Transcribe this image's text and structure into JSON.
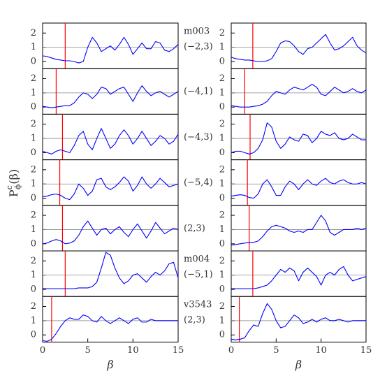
{
  "ylabel": {
    "base": "P",
    "sup": "c",
    "sub": "ϕ",
    "arg": "(β)"
  },
  "chart_data": [
    {
      "type": "line",
      "annotations": [
        "m003",
        "(−2,3)"
      ],
      "xlim": [
        0,
        15
      ],
      "ylim": [
        -0.5,
        2.7
      ],
      "yticks": [
        0,
        1,
        2
      ],
      "hline": 1,
      "hline_color": "#888888",
      "vline": 2.5,
      "vline_color": "#ff0000",
      "x": [
        0,
        0.5,
        1,
        1.5,
        2,
        2.5,
        3,
        3.5,
        4,
        4.5,
        5,
        5.5,
        6,
        6.5,
        7,
        7.5,
        8,
        8.5,
        9,
        9.5,
        10,
        10.5,
        11,
        11.5,
        12,
        12.5,
        13,
        13.5,
        14,
        14.5,
        15
      ],
      "series": [
        {
          "color": "#0000ff",
          "values": [
            0.4,
            0.35,
            0.25,
            0.15,
            0.1,
            0.05,
            0.05,
            0,
            -0.1,
            0,
            1.0,
            1.7,
            1.3,
            0.7,
            0.9,
            1.1,
            0.8,
            1.2,
            1.7,
            1.2,
            0.5,
            0.9,
            1.3,
            0.9,
            0.9,
            1.4,
            1.3,
            0.8,
            0.7,
            0.9,
            1.2
          ]
        }
      ]
    },
    {
      "type": "line",
      "annotations": [
        "(−4,1)"
      ],
      "xlim": [
        0,
        15
      ],
      "ylim": [
        -0.5,
        2.7
      ],
      "yticks": [
        0,
        1,
        2
      ],
      "hline": 1,
      "hline_color": "#888888",
      "vline": 1.5,
      "vline_color": "#ff0000",
      "x": [
        0,
        0.5,
        1,
        1.5,
        2,
        2.5,
        3,
        3.5,
        4,
        4.5,
        5,
        5.5,
        6,
        6.5,
        7,
        7.5,
        8,
        8.5,
        9,
        9.5,
        10,
        10.5,
        11,
        11.5,
        12,
        12.5,
        13,
        13.5,
        14,
        14.5,
        15
      ],
      "series": [
        {
          "color": "#0000ff",
          "values": [
            0.05,
            0,
            -0.05,
            0,
            0.05,
            0.1,
            0.1,
            0.3,
            0.7,
            1.0,
            0.9,
            0.6,
            0.9,
            1.4,
            1.3,
            0.9,
            1.1,
            1.3,
            1.4,
            0.9,
            0.4,
            1.0,
            1.5,
            1.1,
            0.8,
            1.0,
            1.1,
            0.9,
            0.7,
            0.9,
            1.1
          ]
        }
      ]
    },
    {
      "type": "line",
      "annotations": [
        "(−4,3)"
      ],
      "xlim": [
        0,
        15
      ],
      "ylim": [
        -0.5,
        2.7
      ],
      "yticks": [
        0,
        1,
        2
      ],
      "hline": 1,
      "hline_color": "#888888",
      "vline": 2.2,
      "vline_color": "#ff0000",
      "x": [
        0,
        0.5,
        1,
        1.5,
        2,
        2.5,
        3,
        3.5,
        4,
        4.5,
        5,
        5.5,
        6,
        6.5,
        7,
        7.5,
        8,
        8.5,
        9,
        9.5,
        10,
        10.5,
        11,
        11.5,
        12,
        12.5,
        13,
        13.5,
        14,
        14.5,
        15
      ],
      "series": [
        {
          "color": "#0000ff",
          "values": [
            0.1,
            0,
            -0.1,
            0.1,
            0.2,
            0.1,
            0,
            0.5,
            1.2,
            1.5,
            0.6,
            0.2,
            1.0,
            1.7,
            1.0,
            0.3,
            0.6,
            1.2,
            1.6,
            1.2,
            0.6,
            1.0,
            1.5,
            1.0,
            0.5,
            0.8,
            1.2,
            1.0,
            0.6,
            0.8,
            1.3
          ]
        }
      ]
    },
    {
      "type": "line",
      "annotations": [
        "(−5,4)"
      ],
      "xlim": [
        0,
        15
      ],
      "ylim": [
        -0.5,
        2.7
      ],
      "yticks": [
        0,
        1,
        2
      ],
      "hline": 1,
      "hline_color": "#888888",
      "vline": 1.9,
      "vline_color": "#ff0000",
      "x": [
        0,
        0.5,
        1,
        1.5,
        2,
        2.5,
        3,
        3.5,
        4,
        4.5,
        5,
        5.5,
        6,
        6.5,
        7,
        7.5,
        8,
        8.5,
        9,
        9.5,
        10,
        10.5,
        11,
        11.5,
        12,
        12.5,
        13,
        13.5,
        14,
        14.5,
        15
      ],
      "series": [
        {
          "color": "#0000ff",
          "values": [
            0.1,
            0.15,
            0.25,
            0.3,
            0.2,
            0,
            -0.1,
            0.3,
            1.0,
            0.7,
            0.2,
            0.5,
            1.3,
            1.4,
            0.8,
            0.6,
            0.8,
            1.1,
            1.5,
            1.2,
            0.5,
            0.9,
            1.5,
            1.0,
            0.7,
            1.0,
            1.4,
            1.1,
            0.8,
            0.9,
            1.0
          ]
        }
      ]
    },
    {
      "type": "line",
      "annotations": [
        "(2,3)"
      ],
      "xlim": [
        0,
        15
      ],
      "ylim": [
        -0.5,
        2.7
      ],
      "yticks": [
        0,
        1,
        2
      ],
      "hline": 1,
      "hline_color": "#888888",
      "vline": 2.2,
      "vline_color": "#ff0000",
      "x": [
        0,
        0.5,
        1,
        1.5,
        2,
        2.5,
        3,
        3.5,
        4,
        4.5,
        5,
        5.5,
        6,
        6.5,
        7,
        7.5,
        8,
        8.5,
        9,
        9.5,
        10,
        10.5,
        11,
        11.5,
        12,
        12.5,
        13,
        13.5,
        14,
        14.5,
        15
      ],
      "series": [
        {
          "color": "#0000ff",
          "values": [
            0,
            0.05,
            0.2,
            0.3,
            0.2,
            0,
            0.05,
            0.2,
            0.6,
            1.2,
            1.6,
            1.1,
            0.6,
            1.0,
            1.1,
            0.7,
            1.0,
            1.2,
            0.8,
            0.5,
            1.0,
            1.4,
            0.9,
            0.4,
            0.9,
            1.5,
            1.1,
            0.7,
            0.9,
            1.1,
            1.0
          ]
        }
      ]
    },
    {
      "type": "line",
      "annotations": [
        "m004",
        "(−5,1)"
      ],
      "xlim": [
        0,
        15
      ],
      "ylim": [
        -0.5,
        2.7
      ],
      "yticks": [
        0,
        1,
        2
      ],
      "hline": 1,
      "hline_color": "#888888",
      "vline": 2.5,
      "vline_color": "#ff0000",
      "x": [
        0,
        0.5,
        1,
        1.5,
        2,
        2.5,
        3,
        3.5,
        4,
        4.5,
        5,
        5.5,
        6,
        6.5,
        7,
        7.5,
        8,
        8.5,
        9,
        9.5,
        10,
        10.5,
        11,
        11.5,
        12,
        12.5,
        13,
        13.5,
        14,
        14.5,
        15
      ],
      "series": [
        {
          "color": "#0000ff",
          "values": [
            0.05,
            0.05,
            0.05,
            0.05,
            0.05,
            0.05,
            0.05,
            0.05,
            0.1,
            0.1,
            0.1,
            0.2,
            0.5,
            1.5,
            2.6,
            2.4,
            1.5,
            0.8,
            0.4,
            0.6,
            1.0,
            1.1,
            0.8,
            0.5,
            0.9,
            1.2,
            1.0,
            1.3,
            1.8,
            1.9,
            0.8
          ]
        }
      ]
    },
    {
      "type": "line",
      "annotations": [
        "v3543",
        "(2,3)"
      ],
      "xlim": [
        0,
        15
      ],
      "ylim": [
        -0.5,
        2.7
      ],
      "yticks": [
        0,
        1,
        2
      ],
      "xticks": [
        0,
        5,
        10,
        15
      ],
      "xlabel": "β",
      "hline": 1,
      "hline_color": "#888888",
      "vline": 1.0,
      "vline_color": "#ff0000",
      "x": [
        0,
        0.5,
        1,
        1.5,
        2,
        2.5,
        3,
        3.5,
        4,
        4.5,
        5,
        5.5,
        6,
        6.5,
        7,
        7.5,
        8,
        8.5,
        9,
        9.5,
        10,
        10.5,
        11,
        11.5,
        12,
        12.5,
        13,
        13.5,
        14,
        14.5,
        15
      ],
      "series": [
        {
          "color": "#0000ff",
          "values": [
            -0.4,
            -0.45,
            -0.3,
            0.1,
            0.6,
            1.0,
            1.2,
            1.1,
            1.1,
            1.4,
            1.3,
            1.0,
            0.9,
            1.3,
            1.0,
            0.8,
            1.0,
            1.2,
            1.0,
            0.8,
            1.1,
            1.2,
            0.9,
            0.9,
            1.1,
            1.0,
            1.0,
            1.0,
            1.0,
            1.0,
            1.0
          ]
        }
      ]
    },
    {
      "type": "line",
      "xlim": [
        0,
        15
      ],
      "ylim": [
        -0.5,
        2.7
      ],
      "yticks": [
        0,
        1,
        2
      ],
      "hline": 1,
      "hline_color": "#888888",
      "vline": 2.4,
      "vline_color": "#ff0000",
      "x": [
        0,
        0.5,
        1,
        1.5,
        2,
        2.5,
        3,
        3.5,
        4,
        4.5,
        5,
        5.5,
        6,
        6.5,
        7,
        7.5,
        8,
        8.5,
        9,
        9.5,
        10,
        10.5,
        11,
        11.5,
        12,
        12.5,
        13,
        13.5,
        14,
        14.5,
        15
      ],
      "series": [
        {
          "color": "#0000ff",
          "values": [
            0.3,
            0.2,
            0.15,
            0.1,
            0.1,
            0.05,
            0,
            0,
            0.05,
            0.2,
            0.7,
            1.3,
            1.45,
            1.4,
            1.1,
            0.7,
            0.5,
            0.9,
            1.0,
            1.3,
            1.6,
            1.9,
            1.3,
            0.8,
            0.9,
            1.1,
            1.4,
            1.7,
            1.1,
            0.8,
            0.6
          ]
        }
      ]
    },
    {
      "type": "line",
      "xlim": [
        0,
        15
      ],
      "ylim": [
        -0.5,
        2.7
      ],
      "yticks": [
        0,
        1,
        2
      ],
      "hline": 1,
      "hline_color": "#888888",
      "vline": 1.5,
      "vline_color": "#ff0000",
      "x": [
        0,
        0.5,
        1,
        1.5,
        2,
        2.5,
        3,
        3.5,
        4,
        4.5,
        5,
        5.5,
        6,
        6.5,
        7,
        7.5,
        8,
        8.5,
        9,
        9.5,
        10,
        10.5,
        11,
        11.5,
        12,
        12.5,
        13,
        13.5,
        14,
        14.5,
        15
      ],
      "series": [
        {
          "color": "#0000ff",
          "values": [
            0.1,
            0.05,
            0,
            0,
            0,
            0.05,
            0.1,
            0.2,
            0.4,
            0.8,
            1.1,
            1.0,
            0.9,
            1.2,
            1.4,
            1.3,
            1.2,
            1.4,
            1.6,
            1.4,
            0.9,
            0.8,
            1.1,
            1.4,
            1.2,
            1.0,
            1.1,
            1.3,
            1.1,
            1.0,
            1.2
          ]
        }
      ]
    },
    {
      "type": "line",
      "xlim": [
        0,
        15
      ],
      "ylim": [
        -0.5,
        2.7
      ],
      "yticks": [
        0,
        1,
        2
      ],
      "hline": 1,
      "hline_color": "#888888",
      "vline": 2.1,
      "vline_color": "#ff0000",
      "x": [
        0,
        0.5,
        1,
        1.5,
        2,
        2.5,
        3,
        3.5,
        4,
        4.5,
        5,
        5.5,
        6,
        6.5,
        7,
        7.5,
        8,
        8.5,
        9,
        9.5,
        10,
        10.5,
        11,
        11.5,
        12,
        12.5,
        13,
        13.5,
        14,
        14.5,
        15
      ],
      "series": [
        {
          "color": "#0000ff",
          "values": [
            0,
            0.1,
            0.1,
            0,
            -0.1,
            0,
            0.3,
            0.9,
            2.1,
            1.8,
            0.8,
            0.3,
            0.6,
            1.1,
            0.9,
            0.8,
            1.3,
            1.2,
            0.7,
            1.0,
            1.5,
            1.3,
            1.2,
            1.4,
            1.0,
            0.9,
            1.0,
            1.3,
            1.1,
            0.9,
            0.9
          ]
        }
      ]
    },
    {
      "type": "line",
      "xlim": [
        0,
        15
      ],
      "ylim": [
        -0.5,
        2.7
      ],
      "yticks": [
        0,
        1,
        2
      ],
      "hline": 1,
      "hline_color": "#888888",
      "vline": 1.8,
      "vline_color": "#ff0000",
      "x": [
        0,
        0.5,
        1,
        1.5,
        2,
        2.5,
        3,
        3.5,
        4,
        4.5,
        5,
        5.5,
        6,
        6.5,
        7,
        7.5,
        8,
        8.5,
        9,
        9.5,
        10,
        10.5,
        11,
        11.5,
        12,
        12.5,
        13,
        13.5,
        14,
        14.5,
        15
      ],
      "series": [
        {
          "color": "#0000ff",
          "values": [
            0.15,
            0.2,
            0.25,
            0.2,
            0.05,
            0,
            0.3,
            1.0,
            1.3,
            0.8,
            0.2,
            0.2,
            0.8,
            1.2,
            1.0,
            0.6,
            1.0,
            1.3,
            1.0,
            0.9,
            1.2,
            1.4,
            1.1,
            1.0,
            1.2,
            1.3,
            1.1,
            1.0,
            1.0,
            1.1,
            1.0
          ]
        }
      ]
    },
    {
      "type": "line",
      "xlim": [
        0,
        15
      ],
      "ylim": [
        -0.5,
        2.7
      ],
      "yticks": [
        0,
        1,
        2
      ],
      "hline": 1,
      "hline_color": "#888888",
      "vline": 2.0,
      "vline_color": "#ff0000",
      "x": [
        0,
        0.5,
        1,
        1.5,
        2,
        2.5,
        3,
        3.5,
        4,
        4.5,
        5,
        5.5,
        6,
        6.5,
        7,
        7.5,
        8,
        8.5,
        9,
        9.5,
        10,
        10.5,
        11,
        11.5,
        12,
        12.5,
        13,
        13.5,
        14,
        14.5,
        15
      ],
      "series": [
        {
          "color": "#0000ff",
          "values": [
            -0.1,
            -0.05,
            0,
            0.05,
            0.1,
            0.1,
            0.2,
            0.5,
            0.9,
            1.2,
            1.3,
            1.2,
            1.1,
            0.9,
            0.8,
            0.9,
            0.8,
            1.0,
            1.0,
            1.5,
            2.0,
            1.6,
            0.8,
            0.6,
            0.8,
            1.0,
            1.0,
            1.0,
            1.1,
            1.0,
            1.1
          ]
        }
      ]
    },
    {
      "type": "line",
      "xlim": [
        0,
        15
      ],
      "ylim": [
        -0.5,
        2.7
      ],
      "yticks": [
        0,
        1,
        2
      ],
      "hline": 1,
      "hline_color": "#888888",
      "vline": 2.4,
      "vline_color": "#ff0000",
      "x": [
        0,
        0.5,
        1,
        1.5,
        2,
        2.5,
        3,
        3.5,
        4,
        4.5,
        5,
        5.5,
        6,
        6.5,
        7,
        7.5,
        8,
        8.5,
        9,
        9.5,
        10,
        10.5,
        11,
        11.5,
        12,
        12.5,
        13,
        13.5,
        14,
        14.5,
        15
      ],
      "series": [
        {
          "color": "#0000ff",
          "values": [
            0.05,
            0.05,
            0.05,
            0.05,
            0.05,
            0.05,
            0.1,
            0.2,
            0.3,
            0.6,
            1.0,
            1.4,
            1.2,
            1.5,
            1.3,
            0.6,
            1.2,
            1.5,
            1.2,
            0.9,
            0.3,
            1.0,
            1.2,
            1.0,
            1.4,
            1.6,
            1.0,
            0.6,
            0.7,
            0.8,
            0.9
          ]
        }
      ]
    },
    {
      "type": "line",
      "xlim": [
        0,
        15
      ],
      "ylim": [
        -0.5,
        2.7
      ],
      "yticks": [
        0,
        1,
        2
      ],
      "xticks": [
        0,
        5,
        10,
        15
      ],
      "xlabel": "β",
      "hline": 1,
      "hline_color": "#888888",
      "vline": 0.9,
      "vline_color": "#ff0000",
      "x": [
        0,
        0.5,
        1,
        1.5,
        2,
        2.5,
        3,
        3.5,
        4,
        4.5,
        5,
        5.5,
        6,
        6.5,
        7,
        7.5,
        8,
        8.5,
        9,
        9.5,
        10,
        10.5,
        11,
        11.5,
        12,
        12.5,
        13,
        13.5,
        14,
        14.5,
        15
      ],
      "series": [
        {
          "color": "#0000ff",
          "values": [
            -0.3,
            -0.35,
            -0.3,
            -0.2,
            0.3,
            0.7,
            0.6,
            1.5,
            2.2,
            1.8,
            1.0,
            0.5,
            0.6,
            1.0,
            1.4,
            1.2,
            0.8,
            0.9,
            1.1,
            0.9,
            1.1,
            1.2,
            1.0,
            1.0,
            1.1,
            1.0,
            0.9,
            1.0,
            1.0,
            1.0,
            1.0
          ]
        }
      ]
    }
  ]
}
